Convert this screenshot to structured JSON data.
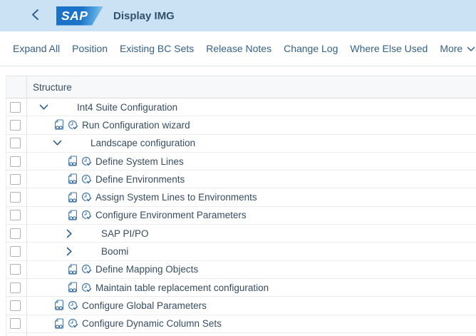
{
  "colors": {
    "header_bg": "#cbe2f4",
    "logo_blue": "#1a73c8",
    "link_blue": "#346187",
    "icon_blue": "#4379ae",
    "icon_blue_dark": "#2e6496",
    "chevron_blue": "#2b5c8f",
    "tree_text": "#374c60"
  },
  "header": {
    "logo_text": "SAP",
    "title": "Display IMG"
  },
  "toolbar": {
    "items": [
      "Expand All",
      "Position",
      "Existing BC Sets",
      "Release Notes",
      "Change Log",
      "Where Else Used"
    ],
    "more_label": "More"
  },
  "table": {
    "column_header": "Structure",
    "rows": [
      {
        "label": "Int4 Suite Configuration",
        "level": 1,
        "type": "group-expanded"
      },
      {
        "label": "Run Configuration wizard",
        "level": 2,
        "type": "activity"
      },
      {
        "label": "Landscape configuration",
        "level": 2,
        "type": "group-expanded"
      },
      {
        "label": "Define System Lines",
        "level": 3,
        "type": "activity"
      },
      {
        "label": "Define Environments",
        "level": 3,
        "type": "activity"
      },
      {
        "label": "Assign System Lines to Environments",
        "level": 3,
        "type": "activity"
      },
      {
        "label": "Configure Environment Parameters",
        "level": 3,
        "type": "activity"
      },
      {
        "label": "SAP PI/PO",
        "level": 3,
        "type": "group-collapsed"
      },
      {
        "label": "Boomi",
        "level": 3,
        "type": "group-collapsed"
      },
      {
        "label": "Define Mapping Objects",
        "level": 3,
        "type": "activity"
      },
      {
        "label": "Maintain table replacement configuration",
        "level": 3,
        "type": "activity"
      },
      {
        "label": "Configure Global Parameters",
        "level": 2,
        "type": "activity"
      },
      {
        "label": "Configure Dynamic Column Sets",
        "level": 2,
        "type": "activity"
      }
    ]
  }
}
